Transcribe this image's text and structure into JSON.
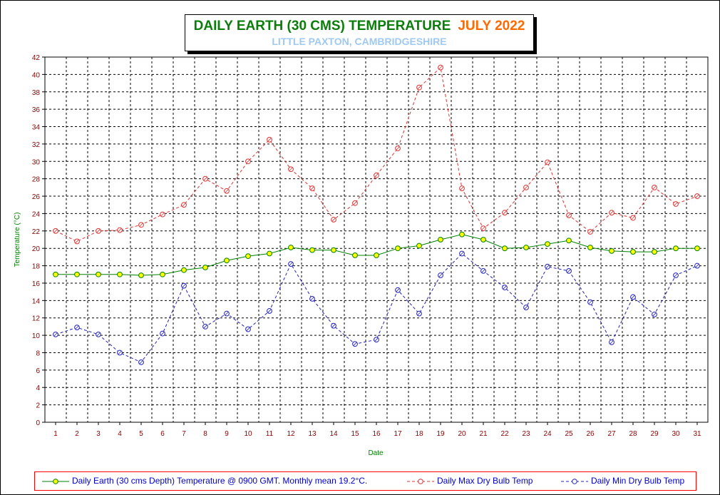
{
  "title": "DAILY EARTH (30 CMS) TEMPERATURE",
  "month": "JULY 2022",
  "subtitle": "LITTLE PAXTON, CAMBRIDGESHIRE",
  "colors": {
    "earth": "#008000",
    "earth_marker": "#ffff00",
    "max": "#e03030",
    "min": "#2020c0",
    "axis_text": "#8b0000",
    "axis_title": "#008000"
  },
  "chart_data": {
    "type": "line",
    "xlabel": "Date",
    "ylabel": "Temperature (°C)",
    "x": [
      1,
      2,
      3,
      4,
      5,
      6,
      7,
      8,
      9,
      10,
      11,
      12,
      13,
      14,
      15,
      16,
      17,
      18,
      19,
      20,
      21,
      22,
      23,
      24,
      25,
      26,
      27,
      28,
      29,
      30,
      31
    ],
    "ylim": [
      0,
      42
    ],
    "yticks": [
      0,
      2,
      4,
      6,
      8,
      10,
      12,
      14,
      16,
      18,
      20,
      22,
      24,
      26,
      28,
      30,
      32,
      34,
      36,
      38,
      40,
      42
    ],
    "grid": true,
    "legend_position": "bottom",
    "series": [
      {
        "name": "Daily Earth (30 cms Depth) Temperature @ 0900 GMT. Monthly mean 19.2°C.",
        "style": "solid",
        "values": [
          17.0,
          17.0,
          17.0,
          17.0,
          16.9,
          17.0,
          17.5,
          17.8,
          18.6,
          19.1,
          19.4,
          20.1,
          19.8,
          19.8,
          19.2,
          19.2,
          20.0,
          20.3,
          21.0,
          21.6,
          21.0,
          20.0,
          20.1,
          20.5,
          20.9,
          20.1,
          19.7,
          19.6,
          19.6,
          20.0,
          20.0
        ]
      },
      {
        "name": "Daily Max Dry Bulb Temp",
        "style": "dashed",
        "values": [
          22.0,
          20.8,
          22.0,
          22.1,
          22.7,
          23.9,
          25.0,
          28.0,
          26.6,
          30.0,
          32.5,
          29.1,
          26.9,
          23.3,
          25.2,
          28.4,
          31.5,
          38.5,
          40.8,
          26.9,
          22.3,
          24.1,
          27.0,
          29.9,
          23.8,
          21.9,
          24.1,
          23.5,
          27.0,
          25.1,
          26.0
        ]
      },
      {
        "name": "Daily Min Dry Bulb Temp",
        "style": "dashed",
        "values": [
          10.1,
          10.9,
          10.1,
          8.0,
          6.9,
          10.2,
          15.7,
          11.0,
          12.5,
          10.7,
          12.8,
          18.2,
          14.2,
          11.1,
          9.0,
          9.5,
          15.2,
          12.5,
          16.9,
          19.4,
          17.4,
          15.5,
          13.2,
          17.9,
          17.4,
          13.8,
          9.2,
          14.4,
          12.4,
          16.9,
          18.0
        ]
      }
    ]
  }
}
